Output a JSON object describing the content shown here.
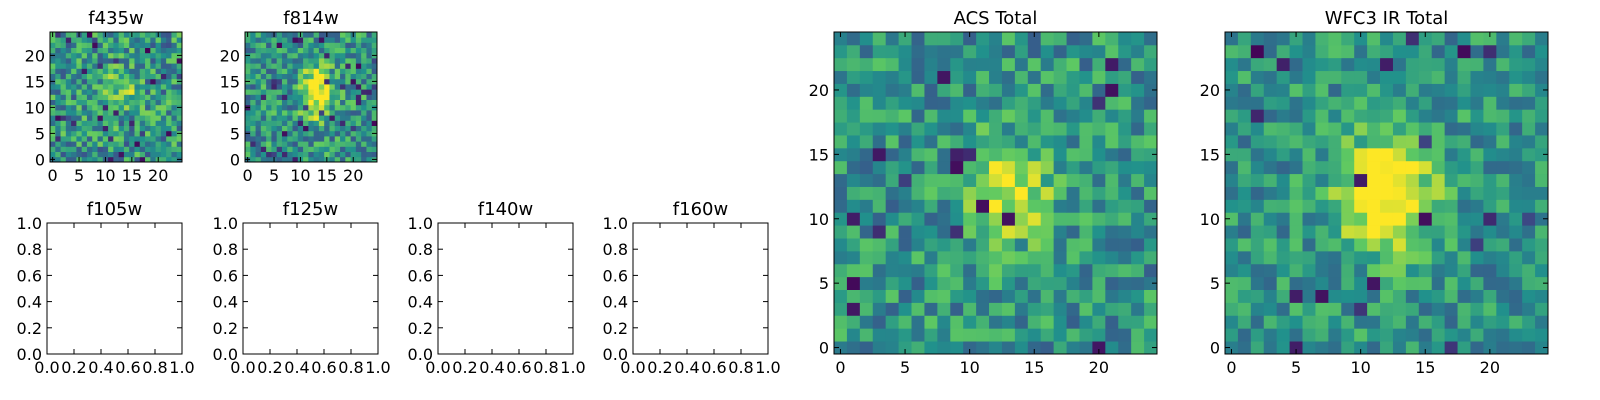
{
  "figure": {
    "colormap": [
      "#440154",
      "#3b528b",
      "#21918c",
      "#5ec962",
      "#fde725"
    ]
  },
  "chart_data": [
    {
      "id": "f435w",
      "type": "heatmap",
      "title": "f435w",
      "grid_size": 25,
      "xlim": [
        -0.5,
        24.5
      ],
      "ylim": [
        -0.5,
        24.5
      ],
      "xticks": [
        0,
        5,
        10,
        15,
        20
      ],
      "yticks": [
        0,
        5,
        10,
        15,
        20
      ],
      "pattern": "noise with faint central source",
      "seed": 11,
      "source": {
        "x": 13,
        "y": 13,
        "sigma": 2.5,
        "amp": 0.25
      },
      "noise": 0.55,
      "dark_fraction": 0.04
    },
    {
      "id": "f814w",
      "type": "heatmap",
      "title": "f814w",
      "grid_size": 25,
      "xlim": [
        -0.5,
        24.5
      ],
      "ylim": [
        -0.5,
        24.5
      ],
      "xticks": [
        0,
        5,
        10,
        15,
        20
      ],
      "yticks": [
        0,
        5,
        10,
        15,
        20
      ],
      "pattern": "noise with elongated central source",
      "seed": 23,
      "source": {
        "x": 13,
        "y": 13,
        "sigma": 2.0,
        "amp": 0.55
      },
      "noise": 0.5,
      "dark_fraction": 0.05
    },
    {
      "id": "f105w",
      "type": "empty",
      "title": "f105w",
      "xlim": [
        0,
        1
      ],
      "ylim": [
        0,
        1
      ],
      "xticks": [
        "0.0",
        "0.2",
        "0.4",
        "0.6",
        "0.8",
        "1.0"
      ],
      "yticks": [
        "0.0",
        "0.2",
        "0.4",
        "0.6",
        "0.8",
        "1.0"
      ]
    },
    {
      "id": "f125w",
      "type": "empty",
      "title": "f125w",
      "xlim": [
        0,
        1
      ],
      "ylim": [
        0,
        1
      ],
      "xticks": [
        "0.0",
        "0.2",
        "0.4",
        "0.6",
        "0.8",
        "1.0"
      ],
      "yticks": [
        "0.0",
        "0.2",
        "0.4",
        "0.6",
        "0.8",
        "1.0"
      ]
    },
    {
      "id": "f140w",
      "type": "empty",
      "title": "f140w",
      "xlim": [
        0,
        1
      ],
      "ylim": [
        0,
        1
      ],
      "xticks": [
        "0.0",
        "0.2",
        "0.4",
        "0.6",
        "0.8",
        "1.0"
      ],
      "yticks": [
        "0.0",
        "0.2",
        "0.4",
        "0.6",
        "0.8",
        "1.0"
      ]
    },
    {
      "id": "f160w",
      "type": "empty",
      "title": "f160w",
      "xlim": [
        0,
        1
      ],
      "ylim": [
        0,
        1
      ],
      "xticks": [
        "0.0",
        "0.2",
        "0.4",
        "0.6",
        "0.8",
        "1.0"
      ],
      "yticks": [
        "0.0",
        "0.2",
        "0.4",
        "0.6",
        "0.8",
        "1.0"
      ]
    },
    {
      "id": "acs-total",
      "type": "heatmap",
      "title": "ACS Total",
      "grid_size": 25,
      "xlim": [
        -0.5,
        24.5
      ],
      "ylim": [
        -0.5,
        24.5
      ],
      "xticks": [
        0,
        5,
        10,
        15,
        20
      ],
      "yticks": [
        0,
        5,
        10,
        15,
        20
      ],
      "pattern": "noise with central source",
      "seed": 37,
      "source": {
        "x": 13,
        "y": 12,
        "sigma": 2.2,
        "amp": 0.45
      },
      "noise": 0.45,
      "dark_fraction": 0.03
    },
    {
      "id": "wfc3-ir-total",
      "type": "heatmap",
      "title": "WFC3 IR Total",
      "grid_size": 25,
      "xlim": [
        -0.5,
        24.5
      ],
      "ylim": [
        -0.5,
        24.5
      ],
      "xticks": [
        0,
        5,
        10,
        15,
        20
      ],
      "yticks": [
        0,
        5,
        10,
        15,
        20
      ],
      "pattern": "noise with bright central source",
      "seed": 53,
      "source": {
        "x": 12,
        "y": 12,
        "sigma": 2.6,
        "amp": 0.65
      },
      "noise": 0.4,
      "dark_fraction": 0.04
    }
  ]
}
